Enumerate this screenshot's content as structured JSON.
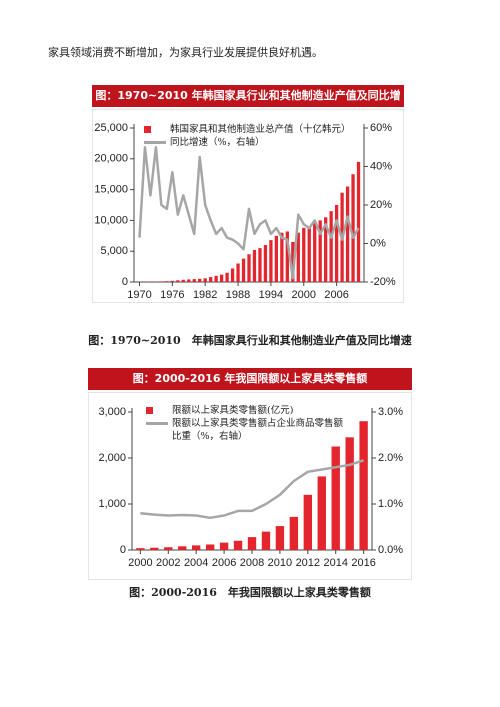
{
  "paragraph": "家具领域消费不断增加，为家具行业发展提供良好机遇。",
  "chart_data": [
    {
      "type": "bar",
      "title": "图：1970~2010 年韩国家具行业和其他制造业产值及同比增速",
      "x": [
        1970,
        1971,
        1972,
        1973,
        1974,
        1975,
        1976,
        1977,
        1978,
        1979,
        1980,
        1981,
        1982,
        1983,
        1984,
        1985,
        1986,
        1987,
        1988,
        1989,
        1990,
        1991,
        1992,
        1993,
        1994,
        1995,
        1996,
        1997,
        1998,
        1999,
        2000,
        2001,
        2002,
        2003,
        2004,
        2005,
        2006,
        2007,
        2008,
        2009,
        2010
      ],
      "xlim": [
        1969,
        2011
      ],
      "xticks": [
        1970,
        1976,
        1982,
        1988,
        1994,
        2000,
        2006
      ],
      "ylim": [
        0,
        25000
      ],
      "yticks": [
        0,
        {
          "value": 5000,
          "label": "5,000"
        },
        {
          "value": 10000,
          "label": "10,000"
        },
        {
          "value": 15000,
          "label": "15,000"
        },
        {
          "value": 20000,
          "label": "20,000"
        },
        {
          "value": 25000,
          "label": "25,000"
        }
      ],
      "y2lim": [
        -20,
        60
      ],
      "y2ticks": [
        {
          "value": -20,
          "label": "-20%"
        },
        {
          "value": 0,
          "label": "0%"
        },
        {
          "value": 20,
          "label": "20%"
        },
        {
          "value": 40,
          "label": "40%"
        },
        {
          "value": 60,
          "label": "60%"
        }
      ],
      "series": [
        {
          "name": "韩国家具和其他制造业总产值（十亿韩元）",
          "color": "#e3262e",
          "type": "bar",
          "values": [
            20,
            30,
            40,
            60,
            90,
            130,
            190,
            280,
            360,
            420,
            470,
            520,
            600,
            800,
            1000,
            1200,
            1500,
            2200,
            3000,
            3800,
            4500,
            5200,
            5500,
            6000,
            6800,
            7500,
            8000,
            8200,
            6500,
            8000,
            8800,
            9000,
            9800,
            10000,
            10500,
            11500,
            12500,
            14500,
            15500,
            17500,
            19500
          ]
        },
        {
          "name": "同比增速（%，右轴）",
          "color": "#a6a6a6",
          "type": "line",
          "axis": "y2",
          "values": [
            3,
            50,
            25,
            50,
            20,
            18,
            37,
            15,
            25,
            15,
            5,
            45,
            20,
            12,
            5,
            8,
            3,
            2,
            0,
            -3,
            18,
            5,
            10,
            12,
            5,
            8,
            3,
            2,
            -18,
            15,
            10,
            8,
            12,
            5,
            10,
            3,
            12,
            2,
            14,
            3,
            8
          ]
        }
      ]
    },
    {
      "type": "bar",
      "title": "图：2000-2016 年我国限额以上家具类零售额",
      "x": [
        2000,
        2001,
        2002,
        2003,
        2004,
        2005,
        2006,
        2007,
        2008,
        2009,
        2010,
        2011,
        2012,
        2013,
        2014,
        2015,
        2016
      ],
      "xlim": [
        1999.4,
        2016.6
      ],
      "xticks": [
        2000,
        2002,
        2004,
        2006,
        2008,
        2010,
        2012,
        2014,
        2016
      ],
      "ylim": [
        0,
        3000
      ],
      "yticks": [
        0,
        {
          "value": 1000,
          "label": "1,000"
        },
        {
          "value": 2000,
          "label": "2,000"
        },
        {
          "value": 3000,
          "label": "3,000"
        }
      ],
      "y2lim": [
        0,
        3
      ],
      "y2ticks": [
        {
          "value": 0,
          "label": "0.0%"
        },
        {
          "value": 1,
          "label": "1.0%"
        },
        {
          "value": 2,
          "label": "2.0%"
        },
        {
          "value": 3,
          "label": "3.0%"
        }
      ],
      "series": [
        {
          "name": "限额以上家具类零售额(亿元)",
          "color": "#e3262e",
          "type": "bar",
          "values": [
            40,
            50,
            60,
            80,
            100,
            120,
            160,
            200,
            280,
            400,
            520,
            720,
            1200,
            1600,
            2250,
            2450,
            2800
          ]
        },
        {
          "name": "限额以上家具类零售额占企业商品零售额比重（%，右轴）",
          "color": "#a6a6a6",
          "type": "line",
          "axis": "y2",
          "values": [
            0.8,
            0.77,
            0.75,
            0.76,
            0.75,
            0.7,
            0.75,
            0.85,
            0.85,
            1.0,
            1.2,
            1.5,
            1.7,
            1.75,
            1.8,
            1.85,
            1.95
          ]
        }
      ]
    }
  ],
  "captions": [
    "图：1970~2010　年韩国家具行业和其他制造业产值及同比增速",
    "图：2000-2016　年我国限额以上家具类零售额"
  ]
}
